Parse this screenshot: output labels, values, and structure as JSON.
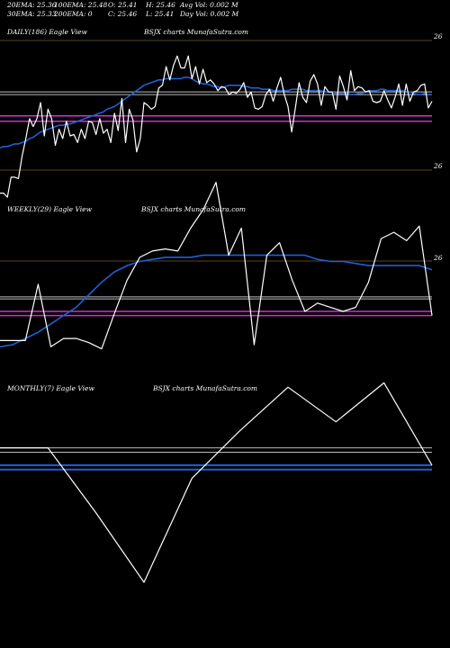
{
  "stats": {
    "ema20": "20EMA: 25.36",
    "ema100": "100EMA: 25.48",
    "open": "O: 25.41",
    "high": "H: 25.46",
    "avgvol": "Avg Vol: 0.002  M",
    "ema30": "30EMA: 25.33",
    "ema200": "200EMA: 0",
    "close": "C: 25.46",
    "low": "L: 25.41",
    "dayvol": "Day Vol: 0.002  M"
  },
  "panels": {
    "daily": {
      "label": "DAILY(186) Eagle  View",
      "watermark": "BSJX  charts MunafaSutra.com",
      "tick_top": "26",
      "tick_bottom": "26"
    },
    "weekly": {
      "label": "WEEKLY(29) Eagle  View",
      "watermark": "BSJX  charts MunafaSutra.com",
      "tick_top": "26"
    },
    "monthly": {
      "label": "MONTHLY(7) Eagle  View",
      "watermark": "BSJX  charts MunafaSutra.com"
    }
  },
  "colors": {
    "price": "#ffffff",
    "ema_blue": "#1f5fd8",
    "magenta": "#cc33cc",
    "grid": "#7a5a2a",
    "ema_long": "#cfcfcf"
  },
  "chart_data": [
    {
      "type": "line",
      "title": "DAILY(186) Eagle  View",
      "ylim": [
        24.9,
        26.15
      ],
      "series": [
        {
          "values": [
            24.97,
            24.97,
            24.94,
            25.09,
            25.09,
            25.08,
            25.25,
            25.38,
            25.53,
            25.47,
            25.53,
            25.65,
            25.4,
            25.6,
            25.53,
            25.33,
            25.45,
            25.38,
            25.51,
            25.4,
            25.41,
            25.35,
            25.45,
            25.38,
            25.51,
            25.5,
            25.41,
            25.53,
            25.42,
            25.45,
            25.35,
            25.57,
            25.44,
            25.68,
            25.35,
            25.6,
            25.52,
            25.28,
            25.38,
            25.65,
            25.63,
            25.6,
            25.62,
            25.76,
            25.78,
            25.92,
            25.82,
            25.93,
            26.0,
            25.91,
            25.91,
            26.0,
            25.83,
            25.92,
            25.79,
            25.9,
            25.8,
            25.82,
            25.79,
            25.74,
            25.77,
            25.76,
            25.71,
            25.73,
            25.72,
            25.75,
            25.8,
            25.69,
            25.73,
            25.61,
            25.6,
            25.62,
            25.71,
            25.75,
            25.66,
            25.76,
            25.84,
            25.71,
            25.62,
            25.43,
            25.61,
            25.8,
            25.69,
            25.65,
            25.81,
            25.86,
            25.79,
            25.63,
            25.77,
            25.73,
            25.73,
            25.6,
            25.85,
            25.77,
            25.67,
            25.89,
            25.74,
            25.77,
            25.76,
            25.73,
            25.74,
            25.66,
            25.65,
            25.66,
            25.74,
            25.67,
            25.61,
            25.69,
            25.79,
            25.63,
            25.79,
            25.66,
            25.73,
            25.74,
            25.78,
            25.79,
            25.61,
            25.66
          ]
        },
        {
          "values": [
            25.31,
            25.32,
            25.32,
            25.33,
            25.34,
            25.34,
            25.35,
            25.36,
            25.38,
            25.39,
            25.41,
            25.43,
            25.44,
            25.45,
            25.46,
            25.47,
            25.48,
            25.48,
            25.49,
            25.49,
            25.5,
            25.51,
            25.52,
            25.53,
            25.54,
            25.55,
            25.56,
            25.57,
            25.58,
            25.6,
            25.61,
            25.62,
            25.64,
            25.66,
            25.68,
            25.7,
            25.72,
            25.74,
            25.76,
            25.78,
            25.79,
            25.8,
            25.81,
            25.82,
            25.82,
            25.83,
            25.83,
            25.83,
            25.83,
            25.83,
            25.84,
            25.84,
            25.83,
            25.81,
            25.8,
            25.79,
            25.79,
            25.78,
            25.77,
            25.77,
            25.76,
            25.77,
            25.78,
            25.78,
            25.78,
            25.78,
            25.77,
            25.77,
            25.76,
            25.76,
            25.76,
            25.75,
            25.75,
            25.75,
            25.74,
            25.74,
            25.74,
            25.74,
            25.74,
            25.75,
            25.75,
            25.75,
            25.75,
            25.74,
            25.74,
            25.74,
            25.74,
            25.74,
            25.73,
            25.73,
            25.73,
            25.72,
            25.72,
            25.72,
            25.72,
            25.71,
            25.71,
            25.72,
            25.72,
            25.73,
            25.74,
            25.74,
            25.74,
            25.75,
            25.75,
            25.74,
            25.74,
            25.74,
            25.74,
            25.74,
            25.73,
            25.73,
            25.72,
            25.71,
            25.71,
            25.72,
            25.71,
            25.71
          ]
        }
      ],
      "hlines": [
        25.73,
        25.71,
        25.55,
        25.51
      ]
    },
    {
      "type": "line",
      "title": "WEEKLY(29) Eagle  View",
      "ylim": [
        25.3,
        26.1
      ],
      "series": [
        {
          "values": [
            25.48,
            25.48,
            25.48,
            25.75,
            25.45,
            25.49,
            25.49,
            25.47,
            25.44,
            25.61,
            25.77,
            25.88,
            25.91,
            25.92,
            25.91,
            26.02,
            26.11,
            26.24,
            25.89,
            26.02,
            25.46,
            25.89,
            25.95,
            25.77,
            25.62,
            25.66,
            25.64,
            25.62,
            25.64,
            25.76,
            25.97,
            26.0,
            25.96,
            26.03,
            25.6
          ]
        },
        {
          "values": [
            25.45,
            25.46,
            25.49,
            25.52,
            25.56,
            25.6,
            25.64,
            25.7,
            25.76,
            25.81,
            25.84,
            25.86,
            25.87,
            25.88,
            25.88,
            25.88,
            25.89,
            25.89,
            25.89,
            25.89,
            25.89,
            25.89,
            25.89,
            25.89,
            25.89,
            25.87,
            25.86,
            25.86,
            25.85,
            25.84,
            25.84,
            25.84,
            25.84,
            25.84,
            25.82
          ]
        }
      ],
      "hlines": [
        25.69,
        25.68,
        25.62,
        25.6
      ]
    },
    {
      "type": "line",
      "title": "MONTHLY(7) Eagle  View",
      "ylim": [
        25.4,
        25.95
      ],
      "series": [
        {
          "values": [
            25.82,
            25.82,
            25.67,
            25.51,
            25.75,
            25.86,
            25.96,
            25.88,
            25.97,
            25.78
          ]
        }
      ],
      "hlines": [
        25.82,
        25.81,
        25.78,
        25.77
      ]
    }
  ]
}
